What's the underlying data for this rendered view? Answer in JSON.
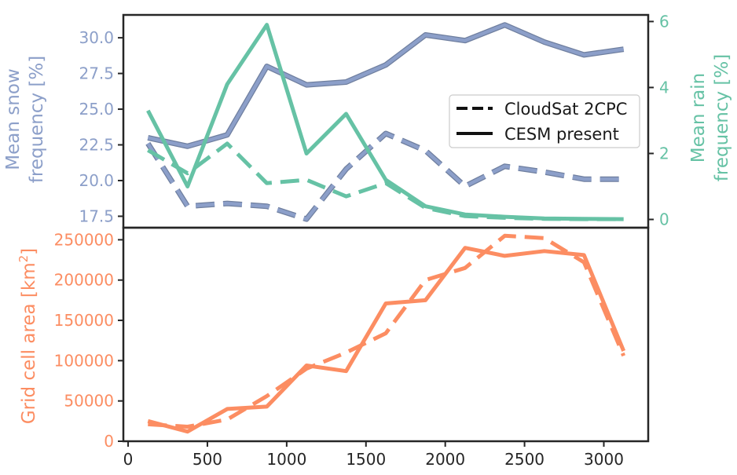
{
  "colors": {
    "snow": "#8c9fc9",
    "rain": "#66c2a5",
    "area": "#fc8d62",
    "frame": "#262626",
    "legend_line": "#111111"
  },
  "legend": {
    "dashed_label": "CloudSat 2CPC",
    "solid_label": "CESM present",
    "placement": "center-right of top panel"
  },
  "chart_data": [
    {
      "type": "line",
      "panel": "top",
      "x": [
        125,
        375,
        625,
        875,
        1125,
        1375,
        1625,
        1875,
        2125,
        2375,
        2625,
        2875,
        3125
      ],
      "left_axis": {
        "label_lines": [
          "Mean snow",
          "frequency [%]"
        ],
        "ylim": [
          16.7,
          31.6
        ],
        "ticks": [
          17.5,
          20.0,
          22.5,
          25.0,
          27.5,
          30.0
        ],
        "tick_labels": [
          "17.5",
          "20.0",
          "22.5",
          "25.0",
          "27.5",
          "30.0"
        ]
      },
      "right_axis": {
        "label_lines": [
          "Mean rain",
          "frequency [%]"
        ],
        "ylim": [
          -0.25,
          6.2
        ],
        "ticks": [
          0,
          2,
          4,
          6
        ],
        "tick_labels": [
          "0",
          "2",
          "4",
          "6"
        ]
      },
      "series": [
        {
          "axis": "left",
          "style": "solid",
          "color_key": "snow",
          "values": [
            23.0,
            22.4,
            23.2,
            28.0,
            26.7,
            26.9,
            28.1,
            30.2,
            29.8,
            30.9,
            29.7,
            28.8,
            29.2
          ]
        },
        {
          "axis": "left",
          "style": "dashed",
          "color_key": "snow",
          "values": [
            22.6,
            18.2,
            18.4,
            18.2,
            17.3,
            20.8,
            23.3,
            22.1,
            19.6,
            21.0,
            20.6,
            20.1,
            20.1
          ]
        },
        {
          "axis": "right",
          "style": "solid",
          "color_key": "rain",
          "values": [
            3.3,
            1.0,
            4.1,
            5.9,
            2.0,
            3.2,
            1.2,
            0.4,
            0.15,
            0.08,
            0.03,
            0.02,
            0.01
          ]
        },
        {
          "axis": "right",
          "style": "dashed",
          "color_key": "rain",
          "values": [
            2.1,
            1.4,
            2.3,
            1.1,
            1.2,
            0.7,
            1.1,
            0.35,
            0.1,
            0.05,
            0.02,
            0.01,
            0.01
          ]
        }
      ]
    },
    {
      "type": "line",
      "panel": "bottom",
      "x": [
        125,
        375,
        625,
        875,
        1125,
        1375,
        1625,
        1875,
        2125,
        2375,
        2625,
        2875,
        3125
      ],
      "xlim": [
        -30,
        3280
      ],
      "xticks": [
        0,
        500,
        1000,
        1500,
        2000,
        2500,
        3000
      ],
      "xtick_labels": [
        "0",
        "500",
        "1000",
        "1500",
        "2000",
        "2500",
        "3000"
      ],
      "left_axis": {
        "label_main": "Grid cell area [km",
        "label_sup": "2",
        "label_end": "]",
        "ylim": [
          0,
          265000
        ],
        "ticks": [
          0,
          50000,
          100000,
          150000,
          200000,
          250000
        ],
        "tick_labels": [
          "0",
          "50000",
          "100000",
          "150000",
          "200000",
          "250000"
        ]
      },
      "series": [
        {
          "style": "solid",
          "color_key": "area",
          "values": [
            25000,
            12000,
            40000,
            43000,
            94000,
            87000,
            171000,
            175000,
            240000,
            230000,
            236000,
            231000,
            112000
          ]
        },
        {
          "style": "dashed",
          "color_key": "area",
          "values": [
            21000,
            18000,
            27000,
            56000,
            90000,
            110000,
            134000,
            200000,
            215000,
            255000,
            252000,
            222000,
            106000
          ]
        }
      ]
    }
  ]
}
